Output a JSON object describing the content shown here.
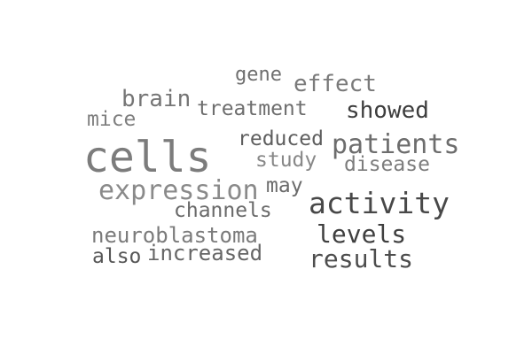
{
  "words": {
    "gene": {
      "text": "gene",
      "color": "#6f6f6f"
    },
    "effect": {
      "text": "effect",
      "color": "#7a7a7a"
    },
    "brain": {
      "text": "brain",
      "color": "#757575"
    },
    "treatment": {
      "text": "treatment",
      "color": "#6e6e6e"
    },
    "mice": {
      "text": "mice",
      "color": "#7f7f7f"
    },
    "showed": {
      "text": "showed",
      "color": "#3d3d3d"
    },
    "cells": {
      "text": "cells",
      "color": "#7c7c7c"
    },
    "reduced": {
      "text": "reduced",
      "color": "#5e5e5e"
    },
    "patients": {
      "text": "patients",
      "color": "#6d6d6d"
    },
    "study": {
      "text": "study",
      "color": "#888888"
    },
    "disease": {
      "text": "disease",
      "color": "#7d7d7d"
    },
    "expression": {
      "text": "expression",
      "color": "#8a8a8a"
    },
    "may": {
      "text": "may",
      "color": "#6b6b6b"
    },
    "activity": {
      "text": "activity",
      "color": "#484848"
    },
    "channels": {
      "text": "channels",
      "color": "#6a6a6a"
    },
    "neuroblastoma": {
      "text": "neuroblastoma",
      "color": "#7b7b7b"
    },
    "levels": {
      "text": "levels",
      "color": "#3f3f3f"
    },
    "also": {
      "text": "also",
      "color": "#565656"
    },
    "increased": {
      "text": "increased",
      "color": "#666666"
    },
    "results": {
      "text": "results",
      "color": "#4d4d4d"
    }
  }
}
